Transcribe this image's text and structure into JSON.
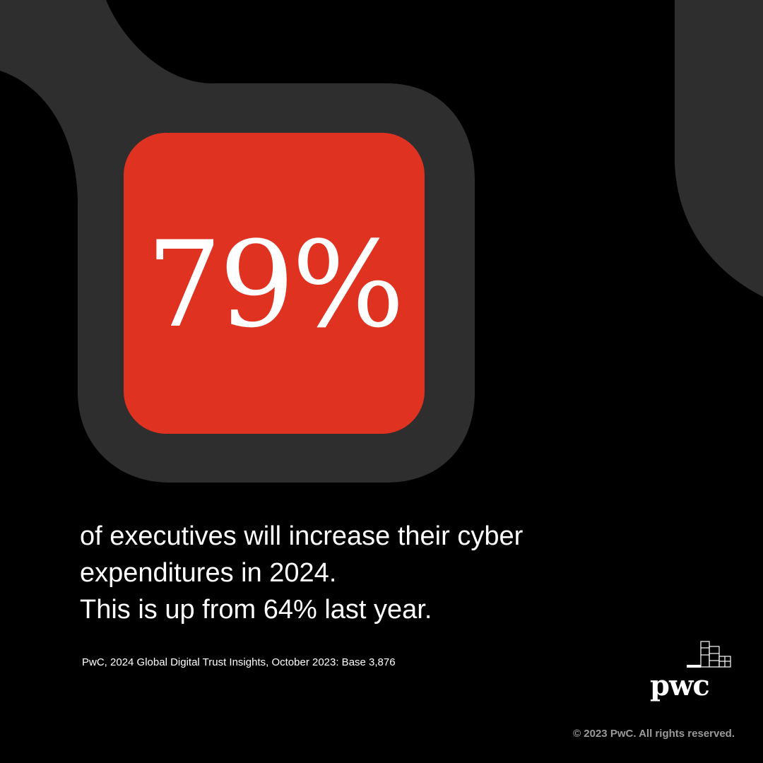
{
  "colors": {
    "background": "#000000",
    "shape": "#2e2e2e",
    "accent": "#E03220",
    "text": "#ffffff",
    "muted": "#9a9a9a"
  },
  "stat": {
    "value": "79%"
  },
  "headline": {
    "lines": [
      "of executives will increase their cyber",
      "expenditures in 2024.",
      "This is up from 64% last year."
    ]
  },
  "source": "PwC, 2024 Global Digital Trust Insights, October 2023: Base 3,876",
  "logo": {
    "text": "pwc",
    "icon": "pwc-logo-mark-icon"
  },
  "copyright": "© 2023 PwC. All rights reserved."
}
